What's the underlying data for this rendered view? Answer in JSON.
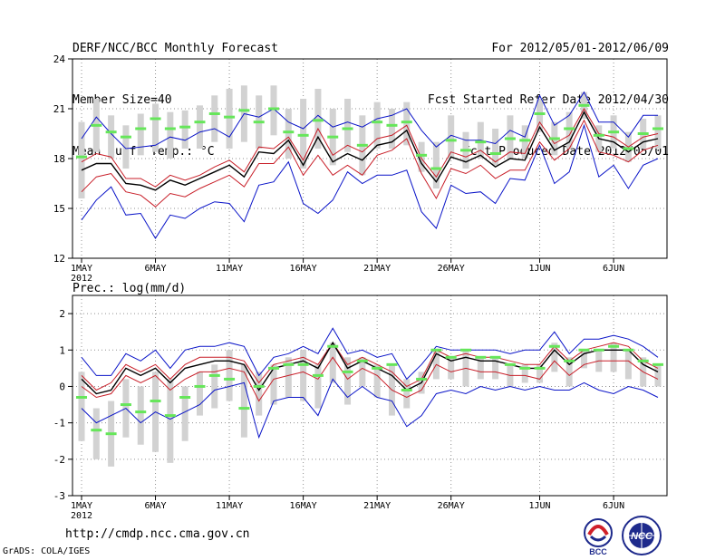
{
  "header": {
    "left": [
      "DERF/NCC/BCC Monthly Forecast",
      "Member Size=40",
      "Mean Surf. Temp.: °C"
    ],
    "right": [
      "For 2012/05/01-2012/06/09",
      "Fcst Started Refer Date 2012/04/30",
      "Fcst Produced Date 2012/05/01"
    ]
  },
  "footer": {
    "url": "http://cmdp.ncc.cma.gov.cn",
    "credit": "GrADS: COLA/IGES",
    "logo_bcc_text": "BCC",
    "logo_ncc_text": "NCC"
  },
  "colors": {
    "box": "#d2d2d2",
    "mean": "#66e65a",
    "outer": "#0a14c8",
    "inner": "#c81e28",
    "median": "#000000",
    "grid": "#909090"
  },
  "chart_data": [
    {
      "type": "line",
      "title": "Mean Surf. Temp.: °C",
      "xlabel": "",
      "ylabel": "°C",
      "ylim": [
        12,
        24
      ],
      "yticks": [
        12,
        15,
        18,
        21,
        24
      ],
      "xticks": [
        {
          "day": 1,
          "label": "1MAY",
          "sub": "2012"
        },
        {
          "day": 6,
          "label": "6MAY"
        },
        {
          "day": 11,
          "label": "11MAY"
        },
        {
          "day": 16,
          "label": "16MAY"
        },
        {
          "day": 21,
          "label": "21MAY"
        },
        {
          "day": 26,
          "label": "26MAY"
        },
        {
          "day": 32,
          "label": "1JUN"
        },
        {
          "day": 37,
          "label": "6JUN"
        }
      ],
      "grid": true,
      "x": [
        1,
        2,
        3,
        4,
        5,
        6,
        7,
        8,
        9,
        10,
        11,
        12,
        13,
        14,
        15,
        16,
        17,
        18,
        19,
        20,
        21,
        22,
        23,
        24,
        25,
        26,
        27,
        28,
        29,
        30,
        31,
        32,
        33,
        34,
        35,
        36,
        37,
        38,
        39,
        40
      ],
      "series": [
        {
          "name": "max",
          "role": "outer",
          "values": [
            19.2,
            20.5,
            19.5,
            18.6,
            18.7,
            18.8,
            19.3,
            19.1,
            19.6,
            19.8,
            19.3,
            20.7,
            20.5,
            21.0,
            20.2,
            19.8,
            20.6,
            19.9,
            20.2,
            19.9,
            20.4,
            20.6,
            21.0,
            19.7,
            18.7,
            19.4,
            19.1,
            19.1,
            18.9,
            19.7,
            19.3,
            21.8,
            20.0,
            20.6,
            22.0,
            20.2,
            20.2,
            19.3,
            20.6,
            20.6
          ]
        },
        {
          "name": "q75",
          "role": "inner",
          "values": [
            17.8,
            18.3,
            18.1,
            16.8,
            16.8,
            16.3,
            17.0,
            16.7,
            17.0,
            17.5,
            17.9,
            17.2,
            18.7,
            18.6,
            19.3,
            17.9,
            19.8,
            18.2,
            18.8,
            18.4,
            19.2,
            19.4,
            20.0,
            18.0,
            16.9,
            18.4,
            18.1,
            18.5,
            17.8,
            18.4,
            18.3,
            20.2,
            18.9,
            19.4,
            21.0,
            19.5,
            19.3,
            18.7,
            19.3,
            19.5
          ]
        },
        {
          "name": "median",
          "role": "median",
          "values": [
            17.3,
            17.7,
            17.7,
            16.5,
            16.4,
            16.1,
            16.7,
            16.4,
            16.8,
            17.2,
            17.6,
            16.9,
            18.4,
            18.3,
            19.1,
            17.6,
            19.3,
            17.8,
            18.3,
            17.9,
            18.8,
            19.0,
            19.7,
            17.7,
            16.6,
            18.1,
            17.8,
            18.2,
            17.5,
            18.0,
            17.9,
            19.9,
            18.5,
            19.0,
            20.8,
            19.2,
            19.0,
            18.4,
            19.0,
            19.2
          ]
        },
        {
          "name": "q25",
          "role": "inner",
          "values": [
            16.0,
            16.9,
            17.1,
            16.0,
            15.8,
            15.1,
            15.9,
            15.7,
            16.2,
            16.6,
            17.0,
            16.3,
            17.7,
            17.7,
            18.7,
            17.0,
            18.2,
            17.0,
            17.6,
            17.0,
            18.2,
            18.5,
            19.2,
            17.1,
            15.6,
            17.4,
            17.1,
            17.6,
            16.8,
            17.3,
            17.3,
            19.0,
            17.9,
            18.6,
            20.3,
            18.4,
            18.2,
            17.8,
            18.5,
            18.8
          ]
        },
        {
          "name": "min",
          "role": "outer",
          "values": [
            14.3,
            15.5,
            16.3,
            14.6,
            14.7,
            13.2,
            14.6,
            14.4,
            15.0,
            15.4,
            15.3,
            14.2,
            16.4,
            16.6,
            17.8,
            15.3,
            14.7,
            15.5,
            17.2,
            16.5,
            17.0,
            17.0,
            17.3,
            14.8,
            13.8,
            16.4,
            15.9,
            16.0,
            15.3,
            16.8,
            16.7,
            18.8,
            16.5,
            17.2,
            20.0,
            16.9,
            17.6,
            16.2,
            17.6,
            18.0
          ]
        },
        {
          "name": "mean",
          "role": "mean-marker",
          "values": [
            18.1,
            20.0,
            19.6,
            19.3,
            19.8,
            20.4,
            19.8,
            19.9,
            20.2,
            20.7,
            20.5,
            20.9,
            20.2,
            21.0,
            19.6,
            19.4,
            20.3,
            19.3,
            19.8,
            18.8,
            20.2,
            20.0,
            20.2,
            18.2,
            17.4,
            19.1,
            18.5,
            19.0,
            18.3,
            19.2,
            19.1,
            20.7,
            19.2,
            19.8,
            21.2,
            19.4,
            19.6,
            18.6,
            19.5,
            19.8
          ]
        },
        {
          "name": "box_high",
          "role": "box",
          "values": [
            20.2,
            21.6,
            20.6,
            20.0,
            20.7,
            21.3,
            20.8,
            20.9,
            21.2,
            21.8,
            22.2,
            22.4,
            21.8,
            22.4,
            21.0,
            21.6,
            22.2,
            21.0,
            21.6,
            20.6,
            21.4,
            21.0,
            21.4,
            19.0,
            19.0,
            20.6,
            19.6,
            20.2,
            19.8,
            20.6,
            20.0,
            21.6,
            20.2,
            20.8,
            22.0,
            20.0,
            20.6,
            19.6,
            20.4,
            20.6
          ]
        },
        {
          "name": "box_low",
          "role": "box",
          "values": [
            15.6,
            18.4,
            18.0,
            17.4,
            18.2,
            18.4,
            18.0,
            18.6,
            18.6,
            19.0,
            18.6,
            19.0,
            18.6,
            19.4,
            18.0,
            17.4,
            18.6,
            17.6,
            18.4,
            17.0,
            18.6,
            18.6,
            18.8,
            17.2,
            16.2,
            18.0,
            17.4,
            18.0,
            17.6,
            18.0,
            18.0,
            19.6,
            18.2,
            18.6,
            20.4,
            18.4,
            18.6,
            17.8,
            18.6,
            18.6
          ]
        }
      ]
    },
    {
      "type": "line",
      "title": "Prec.: log(mm/d)",
      "xlabel": "",
      "ylabel": "log(mm/d)",
      "ylim": [
        -3,
        2.5
      ],
      "yticks": [
        -3,
        -2,
        -1,
        0,
        1,
        2
      ],
      "xticks": [
        {
          "day": 1,
          "label": "1MAY",
          "sub": "2012"
        },
        {
          "day": 6,
          "label": "6MAY"
        },
        {
          "day": 11,
          "label": "11MAY"
        },
        {
          "day": 16,
          "label": "16MAY"
        },
        {
          "day": 21,
          "label": "21MAY"
        },
        {
          "day": 26,
          "label": "26MAY"
        },
        {
          "day": 32,
          "label": "1JUN"
        },
        {
          "day": 37,
          "label": "6JUN"
        }
      ],
      "grid": true,
      "x": [
        1,
        2,
        3,
        4,
        5,
        6,
        7,
        8,
        9,
        10,
        11,
        12,
        13,
        14,
        15,
        16,
        17,
        18,
        19,
        20,
        21,
        22,
        23,
        24,
        25,
        26,
        27,
        28,
        29,
        30,
        31,
        32,
        33,
        34,
        35,
        36,
        37,
        38,
        39,
        40
      ],
      "series": [
        {
          "name": "max",
          "role": "outer",
          "values": [
            0.8,
            0.3,
            0.3,
            0.9,
            0.7,
            1.0,
            0.5,
            1.0,
            1.1,
            1.1,
            1.2,
            1.1,
            0.3,
            0.8,
            0.9,
            1.1,
            0.9,
            1.6,
            0.9,
            1.0,
            0.8,
            0.9,
            0.2,
            0.6,
            1.1,
            1.0,
            1.0,
            1.0,
            1.0,
            0.9,
            1.0,
            1.0,
            1.5,
            0.9,
            1.3,
            1.3,
            1.4,
            1.3,
            1.1,
            0.8
          ]
        },
        {
          "name": "q75",
          "role": "inner",
          "values": [
            0.3,
            -0.1,
            0.1,
            0.6,
            0.4,
            0.6,
            0.2,
            0.6,
            0.8,
            0.8,
            0.8,
            0.7,
            0.1,
            0.6,
            0.7,
            0.8,
            0.6,
            1.2,
            0.6,
            0.8,
            0.6,
            0.4,
            0.0,
            0.2,
            1.0,
            0.8,
            0.9,
            0.8,
            0.8,
            0.7,
            0.6,
            0.6,
            1.1,
            0.7,
            1.0,
            1.1,
            1.2,
            1.1,
            0.7,
            0.5
          ]
        },
        {
          "name": "median",
          "role": "median",
          "values": [
            0.2,
            -0.2,
            -0.1,
            0.5,
            0.3,
            0.5,
            0.1,
            0.5,
            0.6,
            0.7,
            0.7,
            0.6,
            -0.1,
            0.5,
            0.6,
            0.7,
            0.5,
            1.2,
            0.5,
            0.7,
            0.5,
            0.3,
            -0.1,
            0.1,
            0.9,
            0.7,
            0.8,
            0.7,
            0.7,
            0.6,
            0.5,
            0.5,
            1.0,
            0.6,
            0.9,
            1.0,
            1.0,
            1.0,
            0.6,
            0.4
          ]
        },
        {
          "name": "q25",
          "role": "inner",
          "values": [
            0.0,
            -0.3,
            -0.2,
            0.3,
            0.1,
            0.3,
            -0.1,
            0.2,
            0.4,
            0.4,
            0.5,
            0.4,
            -0.4,
            0.2,
            0.3,
            0.4,
            0.2,
            0.8,
            0.2,
            0.5,
            0.3,
            -0.1,
            -0.3,
            -0.1,
            0.6,
            0.4,
            0.5,
            0.4,
            0.4,
            0.3,
            0.3,
            0.2,
            0.7,
            0.3,
            0.6,
            0.7,
            0.7,
            0.7,
            0.4,
            0.2
          ]
        },
        {
          "name": "min",
          "role": "outer",
          "values": [
            -0.6,
            -1.0,
            -0.8,
            -0.6,
            -1.0,
            -0.7,
            -0.9,
            -0.7,
            -0.5,
            -0.1,
            0.0,
            0.1,
            -1.4,
            -0.4,
            -0.3,
            -0.3,
            -0.8,
            0.2,
            -0.3,
            0.0,
            -0.3,
            -0.4,
            -1.1,
            -0.8,
            -0.2,
            -0.1,
            -0.2,
            0.0,
            -0.1,
            0.0,
            -0.1,
            0.0,
            -0.1,
            -0.1,
            0.1,
            -0.1,
            -0.2,
            0.0,
            -0.1,
            -0.3
          ]
        },
        {
          "name": "mean",
          "role": "mean-marker",
          "values": [
            -0.3,
            -1.2,
            -1.3,
            -0.5,
            -0.7,
            -0.4,
            -0.8,
            -0.3,
            0.0,
            0.3,
            0.2,
            -0.6,
            0.0,
            0.5,
            0.6,
            0.6,
            0.3,
            1.1,
            0.4,
            0.7,
            0.5,
            0.6,
            -0.1,
            0.2,
            1.0,
            0.8,
            1.0,
            0.8,
            0.8,
            0.6,
            0.5,
            0.5,
            1.1,
            0.7,
            1.0,
            1.0,
            1.1,
            1.0,
            0.7,
            0.6
          ]
        },
        {
          "name": "box_high",
          "role": "box",
          "values": [
            0.4,
            -0.6,
            -0.4,
            0.2,
            0.0,
            0.4,
            0.2,
            0.0,
            0.4,
            0.6,
            1.0,
            0.6,
            0.4,
            0.6,
            0.8,
            1.0,
            0.6,
            1.2,
            0.8,
            0.8,
            0.6,
            0.6,
            0.2,
            0.4,
            1.0,
            0.8,
            1.0,
            0.8,
            0.8,
            0.6,
            0.6,
            0.6,
            1.2,
            0.8,
            1.0,
            1.0,
            1.2,
            1.0,
            0.8,
            0.6
          ]
        },
        {
          "name": "box_low",
          "role": "box",
          "values": [
            -1.5,
            -2.0,
            -2.2,
            -1.4,
            -1.6,
            -1.8,
            -2.1,
            -1.5,
            -0.8,
            -0.6,
            -0.4,
            -1.4,
            -0.8,
            -0.5,
            -0.3,
            -0.4,
            -0.6,
            0.1,
            -0.5,
            0.0,
            -0.3,
            -0.8,
            -0.6,
            -0.2,
            0.2,
            0.2,
            0.0,
            0.2,
            0.2,
            0.0,
            0.1,
            0.1,
            0.4,
            0.0,
            0.5,
            0.4,
            0.4,
            0.2,
            0.0,
            0.0
          ]
        }
      ]
    }
  ]
}
